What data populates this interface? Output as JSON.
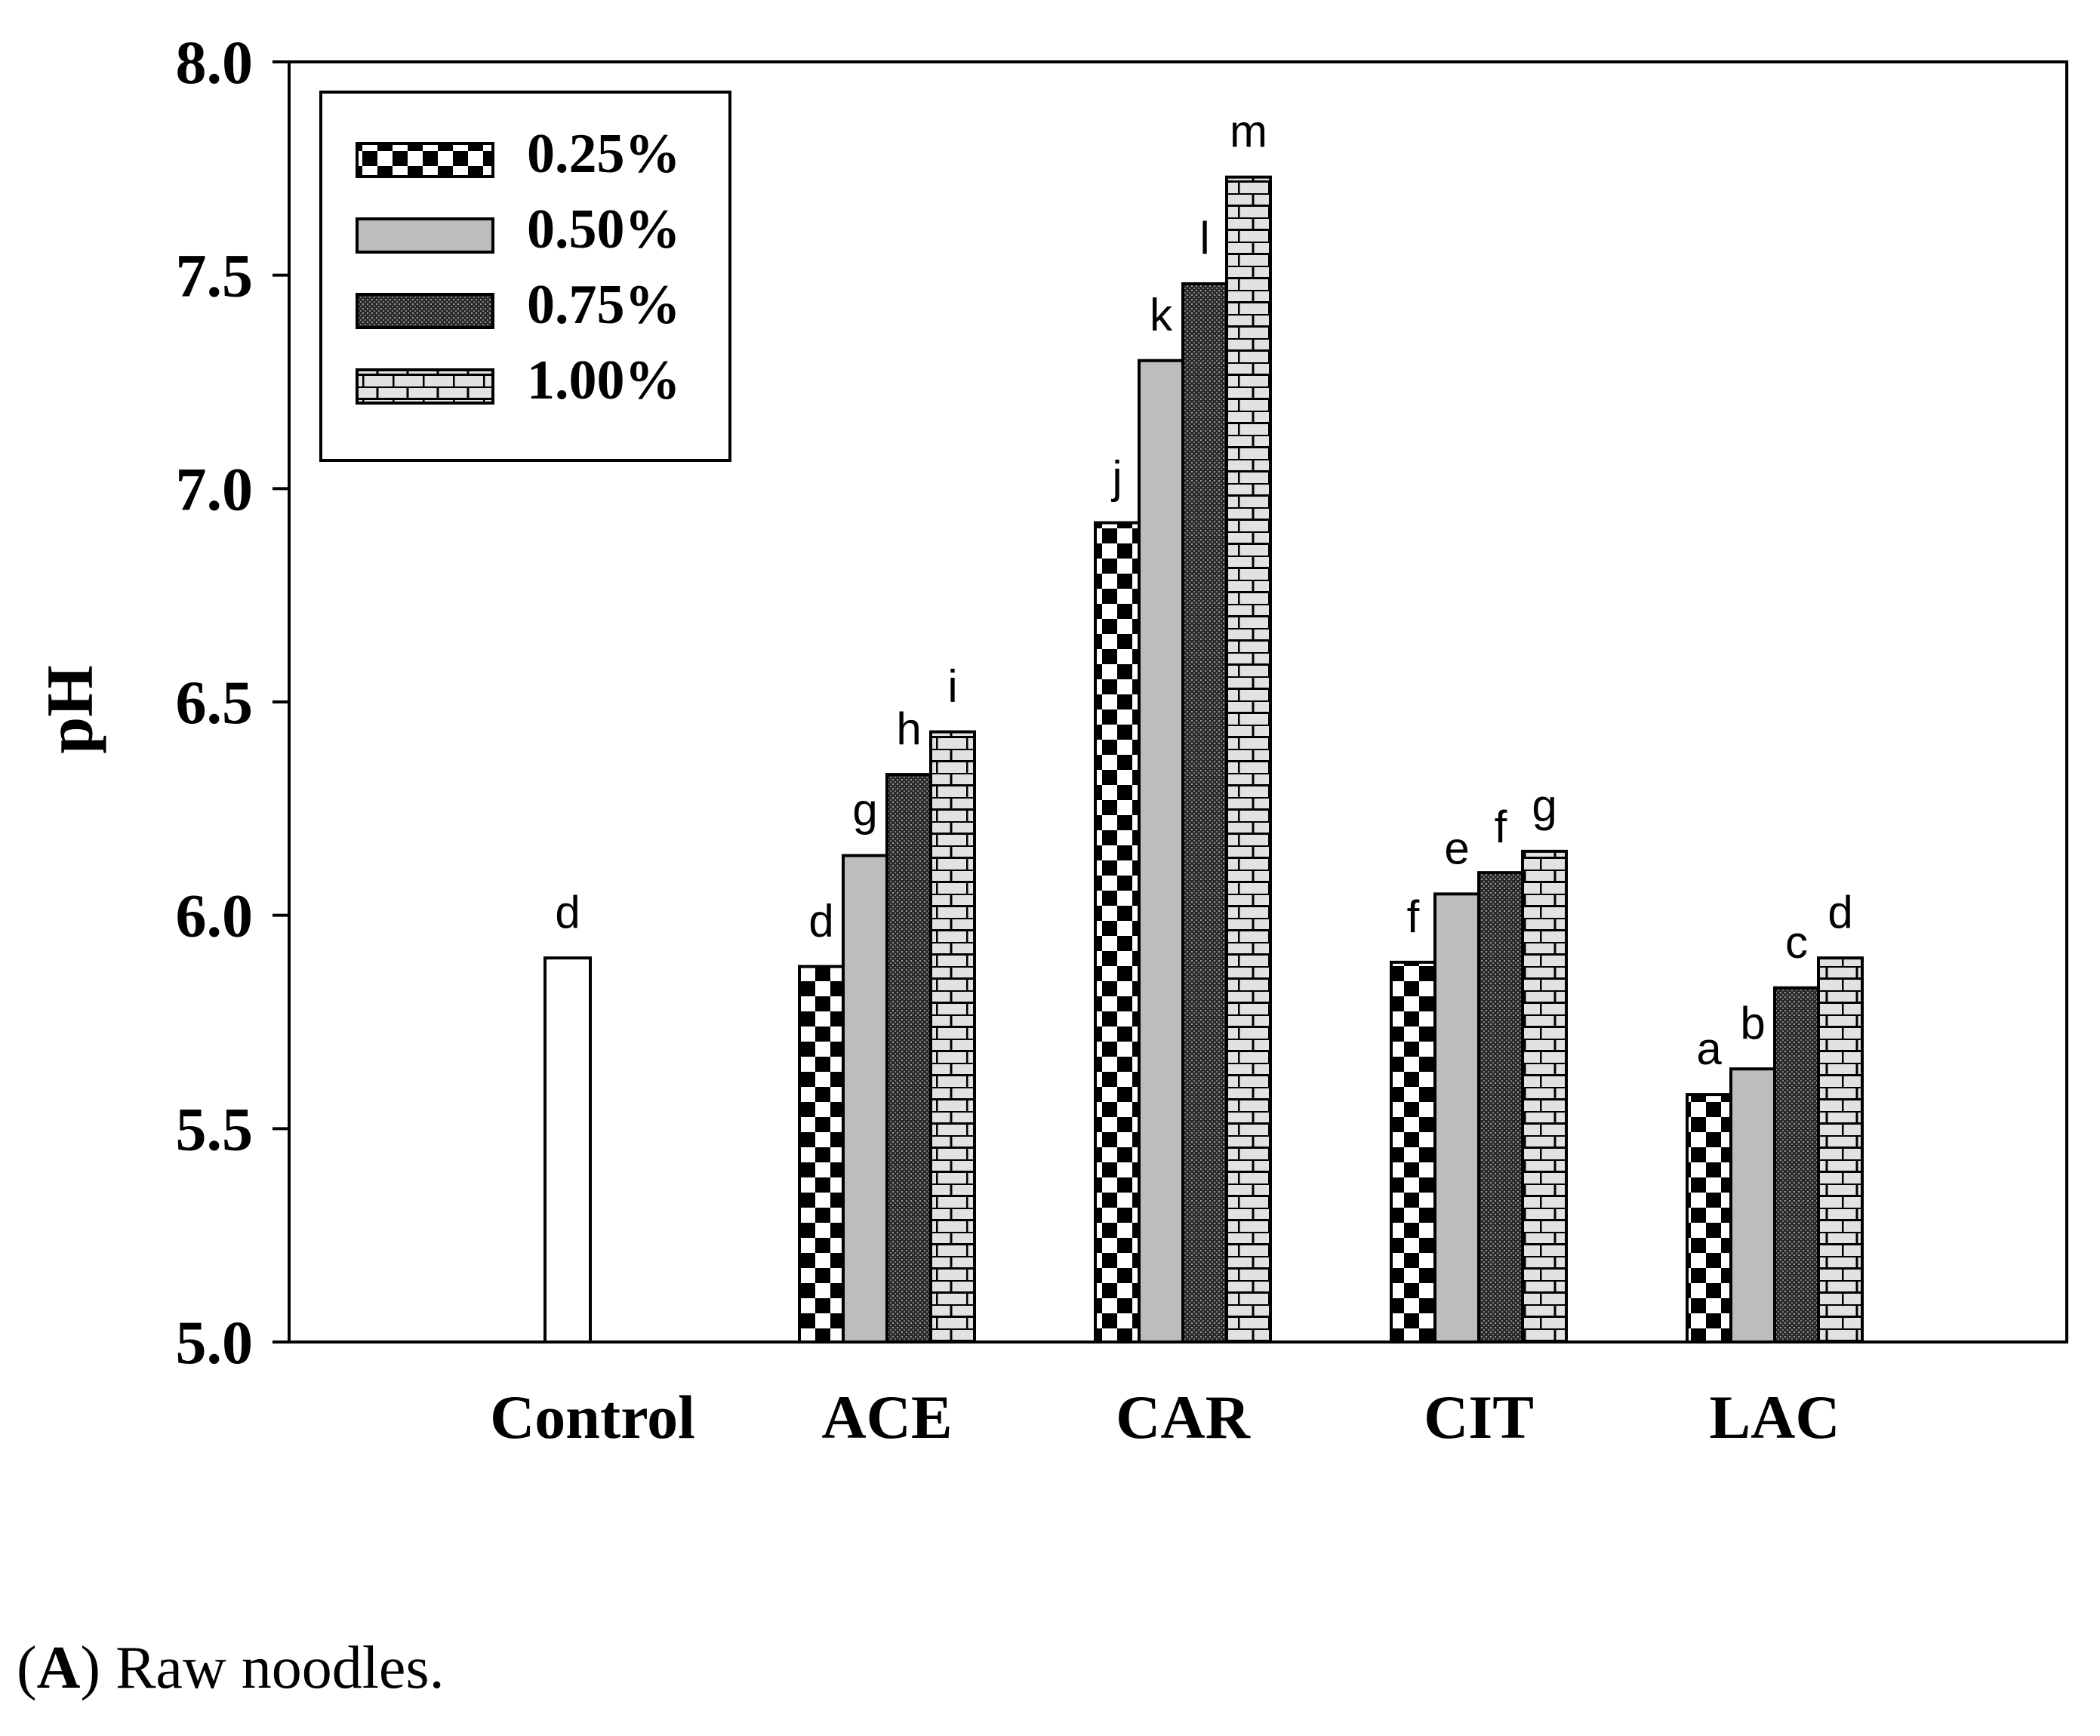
{
  "chart_data": {
    "type": "bar",
    "ylabel": "pH",
    "xlabel": "",
    "ylim": [
      5.0,
      8.0
    ],
    "yticks": [
      "5.0",
      "5.5",
      "6.0",
      "6.5",
      "7.0",
      "7.5",
      "8.0"
    ],
    "grid": false,
    "legend_position": "top-left",
    "control": {
      "category": "Control",
      "value": 5.9,
      "letter": "d"
    },
    "categories": [
      "ACE",
      "CAR",
      "CIT",
      "LAC"
    ],
    "series": [
      {
        "name": "0.25%",
        "pattern": "checker",
        "values": [
          5.88,
          6.92,
          5.89,
          5.58
        ],
        "letters": [
          "d",
          "j",
          "f",
          "a"
        ]
      },
      {
        "name": "0.50%",
        "pattern": "gray",
        "values": [
          6.14,
          7.3,
          6.05,
          5.64
        ],
        "letters": [
          "g",
          "k",
          "e",
          "b"
        ]
      },
      {
        "name": "0.75%",
        "pattern": "dark",
        "values": [
          6.33,
          7.48,
          6.1,
          5.83
        ],
        "letters": [
          "h",
          "l",
          "f",
          "c"
        ]
      },
      {
        "name": "1.00%",
        "pattern": "brick",
        "values": [
          6.43,
          7.73,
          6.15,
          5.9
        ],
        "letters": [
          "i",
          "m",
          "g",
          "d"
        ]
      }
    ]
  },
  "caption": {
    "label": "A",
    "text": "Raw noodles."
  },
  "colors": {
    "gray_fill": "#bdbdbd",
    "brick_fill": "#e2e2e2",
    "axis": "#000000"
  }
}
